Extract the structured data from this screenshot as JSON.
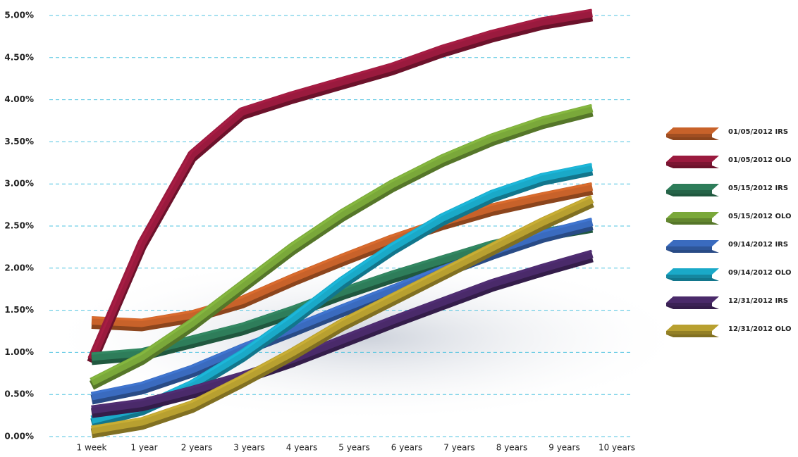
{
  "chart_data": {
    "type": "line",
    "categories": [
      "1 week",
      "1 year",
      "2 years",
      "3 years",
      "4 years",
      "5 years",
      "6 years",
      "7 years",
      "8 years",
      "9 years",
      "10 years"
    ],
    "ylim": [
      0,
      5
    ],
    "yticks": [
      {
        "value": 0,
        "label": "0.00%"
      },
      {
        "value": 0.5,
        "label": "0.50%"
      },
      {
        "value": 1,
        "label": "1.00%"
      },
      {
        "value": 1.5,
        "label": "1.50%"
      },
      {
        "value": 2,
        "label": "2.00%"
      },
      {
        "value": 2.5,
        "label": "2.50%"
      },
      {
        "value": 3,
        "label": "3.00%"
      },
      {
        "value": 3.5,
        "label": "3.50%"
      },
      {
        "value": 4,
        "label": "4.00%"
      },
      {
        "value": 4.5,
        "label": "4.50%"
      },
      {
        "value": 5,
        "label": "5.00%"
      }
    ],
    "grid": true,
    "legend": "right",
    "series": [
      {
        "name": "01/05/2012 IRS",
        "color": "#c8622a",
        "values": [
          1.38,
          1.35,
          1.45,
          1.62,
          1.88,
          2.12,
          2.35,
          2.55,
          2.72,
          2.85,
          2.97
        ]
      },
      {
        "name": "01/05/2012 OLO",
        "color": "#9a1a3e",
        "values": [
          0.92,
          2.3,
          3.35,
          3.86,
          4.05,
          4.22,
          4.39,
          4.6,
          4.78,
          4.93,
          5.03
        ]
      },
      {
        "name": "05/15/2012 IRS",
        "color": "#2e7d5a",
        "values": [
          0.95,
          1.0,
          1.15,
          1.3,
          1.5,
          1.72,
          1.92,
          2.1,
          2.28,
          2.42,
          2.52
        ]
      },
      {
        "name": "05/15/2012 OLO",
        "color": "#7aa83a",
        "values": [
          0.65,
          0.95,
          1.35,
          1.8,
          2.25,
          2.65,
          3.0,
          3.3,
          3.55,
          3.75,
          3.9
        ]
      },
      {
        "name": "09/14/2012 IRS",
        "color": "#3a6bbf",
        "values": [
          0.48,
          0.6,
          0.8,
          1.05,
          1.28,
          1.52,
          1.75,
          1.98,
          2.2,
          2.4,
          2.55
        ]
      },
      {
        "name": "09/14/2012 OLO",
        "color": "#1aa9c8",
        "values": [
          0.2,
          0.35,
          0.62,
          0.98,
          1.4,
          1.85,
          2.25,
          2.6,
          2.88,
          3.08,
          3.2
        ]
      },
      {
        "name": "12/31/2012 IRS",
        "color": "#4a2a6a",
        "values": [
          0.32,
          0.4,
          0.55,
          0.72,
          0.92,
          1.15,
          1.38,
          1.6,
          1.82,
          2.0,
          2.17
        ]
      },
      {
        "name": "12/31/2012 OLO",
        "color": "#b8a030",
        "values": [
          0.08,
          0.18,
          0.38,
          0.68,
          1.0,
          1.35,
          1.65,
          1.95,
          2.25,
          2.55,
          2.82
        ]
      }
    ]
  }
}
